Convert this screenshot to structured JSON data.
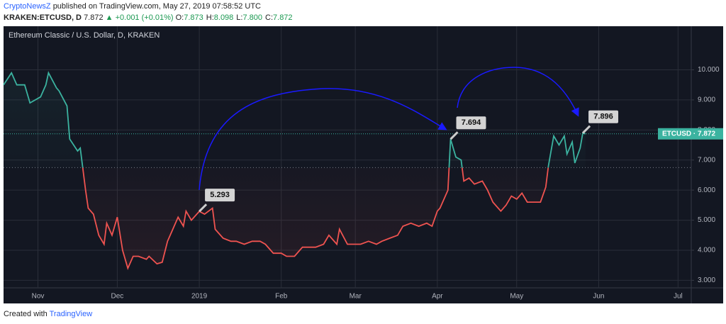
{
  "header": {
    "author": "CryptoNewsZ",
    "published": "published on TradingView.com, May 27, 2019 07:58:52 UTC",
    "symbol": "KRAKEN:ETCUSD, D",
    "price": "7.872",
    "change": "▲ +0.001 (+0.01%)",
    "ohlc": [
      {
        "key": "O:",
        "val": "7.873"
      },
      {
        "key": "H:",
        "val": "8.098"
      },
      {
        "key": "L:",
        "val": "7.800"
      },
      {
        "key": "C:",
        "val": "7.872"
      }
    ]
  },
  "footer": {
    "text": "Created with",
    "brand": "TradingView"
  },
  "chart_data": {
    "type": "line",
    "title": "Ethereum Classic / U.S. Dollar, D, KRAKEN",
    "x": [
      -74,
      -71,
      -69,
      -66,
      -64,
      -62,
      -60,
      -58,
      -57,
      -54,
      -53,
      -50,
      -49,
      -46,
      -45,
      -43,
      -42,
      -40,
      -38,
      -36,
      -35,
      -33,
      -31,
      -29,
      -27,
      -25,
      -23,
      -20,
      -19,
      -16,
      -14,
      -12,
      -10,
      -8,
      -6,
      -5,
      -3,
      0,
      2,
      5,
      6,
      9,
      12,
      14,
      17,
      20,
      23,
      25,
      28,
      31,
      33,
      36,
      39,
      41,
      44,
      47,
      49,
      52,
      53,
      56,
      59,
      61,
      64,
      67,
      69,
      72,
      75,
      77,
      80,
      83,
      86,
      88,
      90,
      91,
      94,
      95,
      97,
      99,
      100,
      102,
      104,
      107,
      109,
      111,
      114,
      116,
      118,
      120,
      122,
      124,
      127,
      129,
      131,
      132,
      134,
      136,
      138,
      139,
      141,
      142,
      144,
      145,
      146
    ],
    "series": [
      {
        "name": "ETCUSD",
        "values": [
          9.5,
          9.9,
          9.5,
          9.5,
          8.9,
          9.0,
          9.1,
          9.5,
          9.9,
          9.4,
          9.3,
          8.8,
          7.7,
          7.3,
          7.4,
          6.0,
          5.4,
          5.2,
          4.5,
          4.2,
          4.9,
          4.5,
          5.1,
          4.0,
          3.4,
          3.8,
          3.8,
          3.7,
          3.8,
          3.55,
          3.6,
          4.3,
          4.7,
          5.1,
          4.8,
          5.3,
          5.0,
          5.293,
          5.2,
          5.4,
          4.7,
          4.4,
          4.3,
          4.3,
          4.2,
          4.3,
          4.3,
          4.2,
          3.9,
          3.9,
          3.8,
          3.8,
          4.1,
          4.1,
          4.1,
          4.2,
          4.5,
          4.2,
          4.7,
          4.2,
          4.2,
          4.2,
          4.3,
          4.2,
          4.3,
          4.4,
          4.5,
          4.8,
          4.9,
          4.8,
          4.9,
          4.8,
          5.3,
          5.4,
          6.0,
          7.694,
          7.1,
          7.0,
          6.3,
          6.4,
          6.2,
          6.3,
          6.0,
          5.6,
          5.3,
          5.5,
          5.8,
          5.7,
          5.9,
          5.6,
          5.6,
          5.6,
          6.1,
          6.8,
          7.8,
          7.5,
          7.8,
          7.2,
          7.6,
          6.9,
          7.4,
          7.896,
          7.872
        ]
      }
    ],
    "baseline": 6.75,
    "color_above": "#3bb3a0",
    "color_below": "#ef5350",
    "xlim": [
      -74,
      186
    ],
    "xticks": [
      {
        "value": -61,
        "label": "Nov"
      },
      {
        "value": -31,
        "label": "Dec"
      },
      {
        "value": 0,
        "label": "2019"
      },
      {
        "value": 31,
        "label": "Feb"
      },
      {
        "value": 59,
        "label": "Mar"
      },
      {
        "value": 90,
        "label": "Apr"
      },
      {
        "value": 120,
        "label": "May"
      },
      {
        "value": 151,
        "label": "Jun"
      },
      {
        "value": 181,
        "label": "Jul"
      }
    ],
    "ylim": [
      2.75,
      11.45
    ],
    "yticks": [
      {
        "value": 3,
        "label": "3.000"
      },
      {
        "value": 4,
        "label": "4.000"
      },
      {
        "value": 5,
        "label": "5.000"
      },
      {
        "value": 6,
        "label": "6.000"
      },
      {
        "value": 7,
        "label": "7.000"
      },
      {
        "value": 8,
        "label": "8.000"
      },
      {
        "value": 9,
        "label": "9.000"
      },
      {
        "value": 10,
        "label": "10.000"
      }
    ],
    "grid": true,
    "annotations": [
      {
        "label": "5.293",
        "value": 5.293,
        "x": 0
      },
      {
        "label": "7.694",
        "value": 7.694,
        "x": 95
      },
      {
        "label": "7.896",
        "value": 7.896,
        "x": 145
      }
    ],
    "last_price": {
      "label": "ETCUSD · 7.872",
      "value": 7.872
    }
  }
}
